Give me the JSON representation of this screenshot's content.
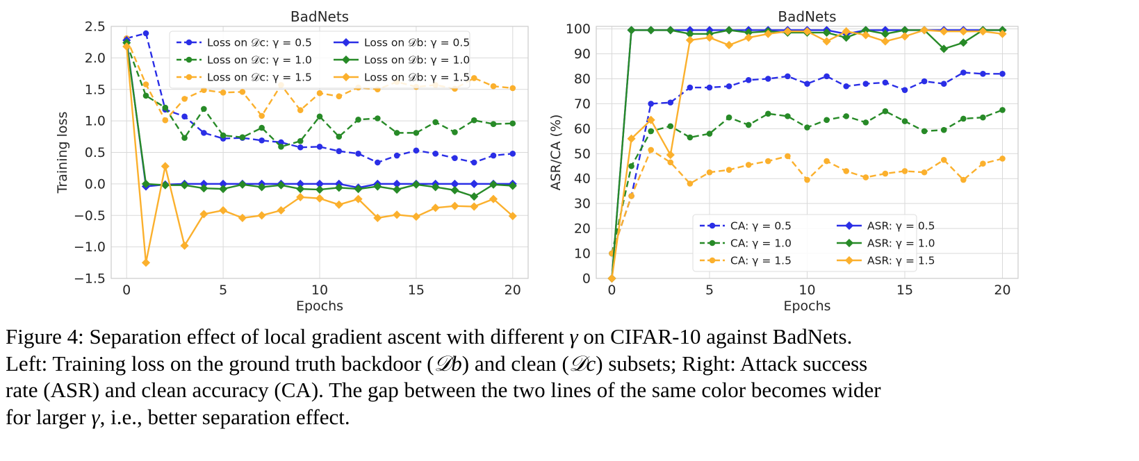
{
  "colors": {
    "blue": "#2a2ee6",
    "green": "#278a27",
    "orange": "#fbb02d",
    "grid": "#d9d9d9",
    "frame": "#cccccc"
  },
  "chart_data": [
    {
      "type": "line",
      "title": "BadNets",
      "xlabel": "Epochs",
      "ylabel": "Training loss",
      "xlim": [
        -0.8,
        20.8
      ],
      "ylim": [
        -1.5,
        2.5
      ],
      "xticks": [
        0,
        5,
        10,
        15,
        20
      ],
      "yticks": [
        -1.5,
        -1.0,
        -0.5,
        0.0,
        0.5,
        1.0,
        1.5,
        2.0,
        2.5
      ],
      "ytick_labels": [
        "−1.5",
        "−1.0",
        "−0.5",
        "0.0",
        "0.5",
        "1.0",
        "1.5",
        "2.0",
        "2.5"
      ],
      "grid": true,
      "legend": "top-center",
      "legend_columns": 2,
      "x": [
        0,
        1,
        2,
        3,
        4,
        5,
        6,
        7,
        8,
        9,
        10,
        11,
        12,
        13,
        14,
        15,
        16,
        17,
        18,
        19,
        20
      ],
      "series": [
        {
          "name": "Loss on 𝒟c: γ = 0.5",
          "color": "blue",
          "linestyle": "dashed",
          "marker": "circle",
          "values": [
            2.31,
            2.39,
            1.18,
            1.07,
            0.81,
            0.72,
            0.73,
            0.69,
            0.66,
            0.58,
            0.59,
            0.52,
            0.48,
            0.34,
            0.45,
            0.53,
            0.48,
            0.41,
            0.34,
            0.45,
            0.48
          ]
        },
        {
          "name": "Loss on 𝒟c: γ = 1.0",
          "color": "green",
          "linestyle": "dashed",
          "marker": "circle",
          "values": [
            2.23,
            1.4,
            1.21,
            0.73,
            1.19,
            0.77,
            0.74,
            0.89,
            0.59,
            0.68,
            1.07,
            0.75,
            1.02,
            1.04,
            0.81,
            0.81,
            0.98,
            0.82,
            1.01,
            0.95,
            0.96
          ]
        },
        {
          "name": "Loss on 𝒟c: γ = 1.5",
          "color": "orange",
          "linestyle": "dashed",
          "marker": "circle",
          "values": [
            2.31,
            1.58,
            1.01,
            1.35,
            1.49,
            1.45,
            1.46,
            1.08,
            1.57,
            1.17,
            1.44,
            1.39,
            1.53,
            1.5,
            1.62,
            1.54,
            1.57,
            1.51,
            1.68,
            1.55,
            1.52
          ]
        },
        {
          "name": "Loss on 𝒟b: γ = 0.5",
          "color": "blue",
          "linestyle": "solid",
          "marker": "diamond",
          "values": [
            2.28,
            -0.04,
            -0.01,
            0.0,
            0.0,
            0.0,
            0.0,
            0.0,
            0.0,
            0.0,
            0.0,
            0.0,
            -0.06,
            0.0,
            0.0,
            0.0,
            0.0,
            0.0,
            0.0,
            0.0,
            0.0
          ]
        },
        {
          "name": "Loss on 𝒟b: γ = 1.0",
          "color": "green",
          "linestyle": "solid",
          "marker": "diamond",
          "values": [
            2.24,
            0.0,
            -0.02,
            -0.02,
            -0.07,
            -0.08,
            -0.01,
            -0.05,
            -0.02,
            -0.08,
            -0.09,
            -0.06,
            -0.08,
            -0.04,
            -0.09,
            -0.01,
            -0.05,
            -0.1,
            -0.2,
            -0.01,
            -0.03
          ]
        },
        {
          "name": "Loss on 𝒟b: γ = 1.5",
          "color": "orange",
          "linestyle": "solid",
          "marker": "diamond",
          "values": [
            2.18,
            -1.25,
            0.28,
            -0.98,
            -0.48,
            -0.42,
            -0.54,
            -0.5,
            -0.42,
            -0.21,
            -0.23,
            -0.33,
            -0.24,
            -0.54,
            -0.49,
            -0.52,
            -0.38,
            -0.35,
            -0.36,
            -0.24,
            -0.51
          ]
        }
      ]
    },
    {
      "type": "line",
      "title": "BadNets",
      "xlabel": "Epochs",
      "ylabel": "ASR/CA (%)",
      "xlim": [
        -0.8,
        20.8
      ],
      "ylim": [
        0,
        101
      ],
      "xticks": [
        0,
        5,
        10,
        15,
        20
      ],
      "yticks": [
        0,
        10,
        20,
        30,
        40,
        50,
        60,
        70,
        80,
        90,
        100
      ],
      "ytick_labels": [
        "0",
        "10",
        "20",
        "30",
        "40",
        "50",
        "60",
        "70",
        "80",
        "90",
        "100"
      ],
      "grid": true,
      "legend": "lower-right",
      "legend_columns": 2,
      "x": [
        0,
        1,
        2,
        3,
        4,
        5,
        6,
        7,
        8,
        9,
        10,
        11,
        12,
        13,
        14,
        15,
        16,
        17,
        18,
        19,
        20
      ],
      "series": [
        {
          "name": "CA: γ = 0.5",
          "color": "blue",
          "linestyle": "dashed",
          "marker": "circle",
          "values": [
            10,
            33,
            70,
            70.5,
            76.5,
            76.5,
            77,
            79.5,
            80,
            81,
            78,
            81,
            77,
            78,
            78.5,
            75.5,
            79,
            78,
            82.5,
            82,
            82
          ]
        },
        {
          "name": "CA: γ = 1.0",
          "color": "green",
          "linestyle": "dashed",
          "marker": "circle",
          "values": [
            10,
            45,
            59,
            61,
            56.5,
            58,
            64.5,
            61.5,
            66,
            65,
            60.5,
            63.5,
            65,
            62.5,
            67,
            63,
            59,
            59.5,
            64,
            64.5,
            67.5
          ]
        },
        {
          "name": "CA: γ = 1.5",
          "color": "orange",
          "linestyle": "dashed",
          "marker": "circle",
          "values": [
            10,
            33,
            51.5,
            46.5,
            38,
            42.5,
            43.5,
            45.5,
            47,
            49,
            39.5,
            47,
            43,
            40.5,
            42,
            43,
            42.5,
            47.5,
            39.5,
            46,
            48
          ]
        },
        {
          "name": "ASR: γ = 0.5",
          "color": "blue",
          "linestyle": "solid",
          "marker": "diamond",
          "values": [
            0,
            99.5,
            99.5,
            99.5,
            99.5,
            99.5,
            99.5,
            99.5,
            99.5,
            99.5,
            99.5,
            99.5,
            98,
            99.5,
            99.5,
            99.5,
            99.5,
            99.5,
            99.5,
            99.5,
            99.5
          ]
        },
        {
          "name": "ASR: γ = 1.0",
          "color": "green",
          "linestyle": "solid",
          "marker": "diamond",
          "values": [
            0,
            99.5,
            99.5,
            99.5,
            98,
            98,
            99.5,
            98.5,
            99,
            98.5,
            98.5,
            98.5,
            96.5,
            99.5,
            98,
            99.5,
            99.5,
            92,
            94.5,
            99.5,
            99.5
          ]
        },
        {
          "name": "ASR: γ = 1.5",
          "color": "orange",
          "linestyle": "solid",
          "marker": "diamond",
          "values": [
            0,
            56,
            63.5,
            49.5,
            95.5,
            96.5,
            93.5,
            96.5,
            98,
            99,
            99,
            95,
            99,
            97.5,
            95,
            97,
            99.5,
            99,
            99,
            99,
            98
          ]
        }
      ]
    }
  ],
  "caption": {
    "lines": [
      {
        "pre": "Figure 4: Separation effect of local gradient ascent with different ",
        "sym": "γ",
        "post": " on CIFAR-10 against BadNets."
      },
      {
        "pre": "Left: Training loss on the ground truth backdoor (",
        "sym": "𝒟b",
        "post": ") and clean (",
        "sym2": "𝒟c",
        "post2": ") subsets; Right: Attack success"
      },
      {
        "pre": "rate (ASR) and clean accuracy (CA). The gap between the two lines of the same color becomes wider",
        "sym": "",
        "post": ""
      },
      {
        "pre": "for larger ",
        "sym": "γ",
        "post": ", i.e., better separation effect."
      }
    ]
  }
}
